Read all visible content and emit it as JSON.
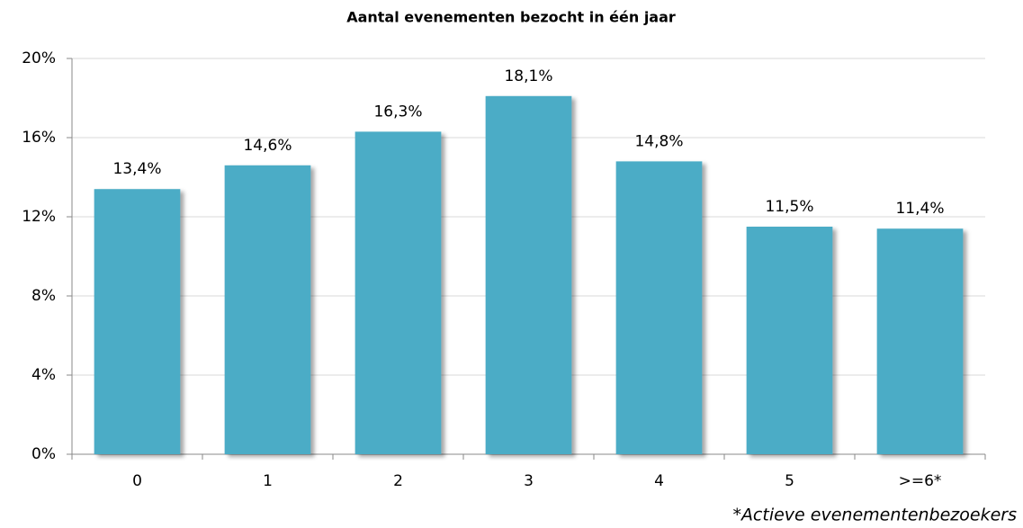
{
  "chart_data": {
    "type": "bar",
    "title": "Aantal evenementen bezocht in één jaar",
    "categories": [
      "0",
      "1",
      "2",
      "3",
      "4",
      "5",
      ">=6*"
    ],
    "values": [
      13.4,
      14.6,
      16.3,
      18.1,
      14.8,
      11.5,
      11.4
    ],
    "value_labels": [
      "13,4%",
      "14,6%",
      "16,3%",
      "18,1%",
      "14,8%",
      "11,5%",
      "11,4%"
    ],
    "color": "#4bacc6",
    "ylim": [
      0,
      20
    ],
    "yticks": [
      {
        "value": 0,
        "label": "0%"
      },
      {
        "value": 4,
        "label": "4%"
      },
      {
        "value": 8,
        "label": "8%"
      },
      {
        "value": 12,
        "label": "12%"
      },
      {
        "value": 16,
        "label": "16%"
      },
      {
        "value": 20,
        "label": "20%"
      }
    ],
    "grid": true,
    "footnote": "*Actieve evenementenbezoekers"
  }
}
